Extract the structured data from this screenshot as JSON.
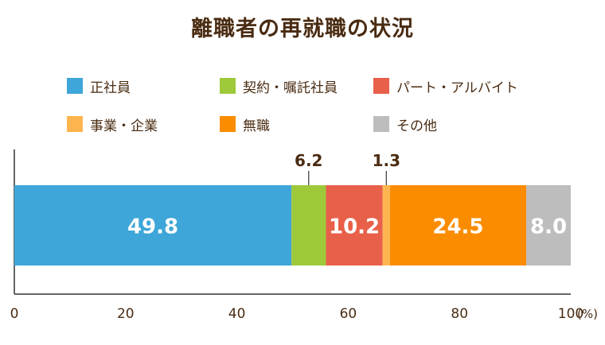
{
  "chart_data": {
    "type": "bar",
    "orientation": "horizontal-stacked-100",
    "title": "離職者の再就職の状況",
    "unit": "(%)",
    "xlim": [
      0,
      100
    ],
    "x_ticks": [
      "0",
      "20",
      "40",
      "60",
      "80",
      "100"
    ],
    "legend_position": "top",
    "series": [
      {
        "name": "正社員",
        "value": 49.8,
        "label": "49.8",
        "color": "#3ea6d8"
      },
      {
        "name": "契約・嘱託社員",
        "value": 6.2,
        "label": "6.2",
        "color": "#9dc93b"
      },
      {
        "name": "パート・アルバイト",
        "value": 10.2,
        "label": "10.2",
        "color": "#e8604a"
      },
      {
        "name": "事業・企業",
        "value": 1.3,
        "label": "1.3",
        "color": "#ffb54f"
      },
      {
        "name": "無職",
        "value": 24.5,
        "label": "24.5",
        "color": "#fb8c00"
      },
      {
        "name": "その他",
        "value": 8.0,
        "label": "8.0",
        "color": "#bdbdbd"
      }
    ]
  }
}
